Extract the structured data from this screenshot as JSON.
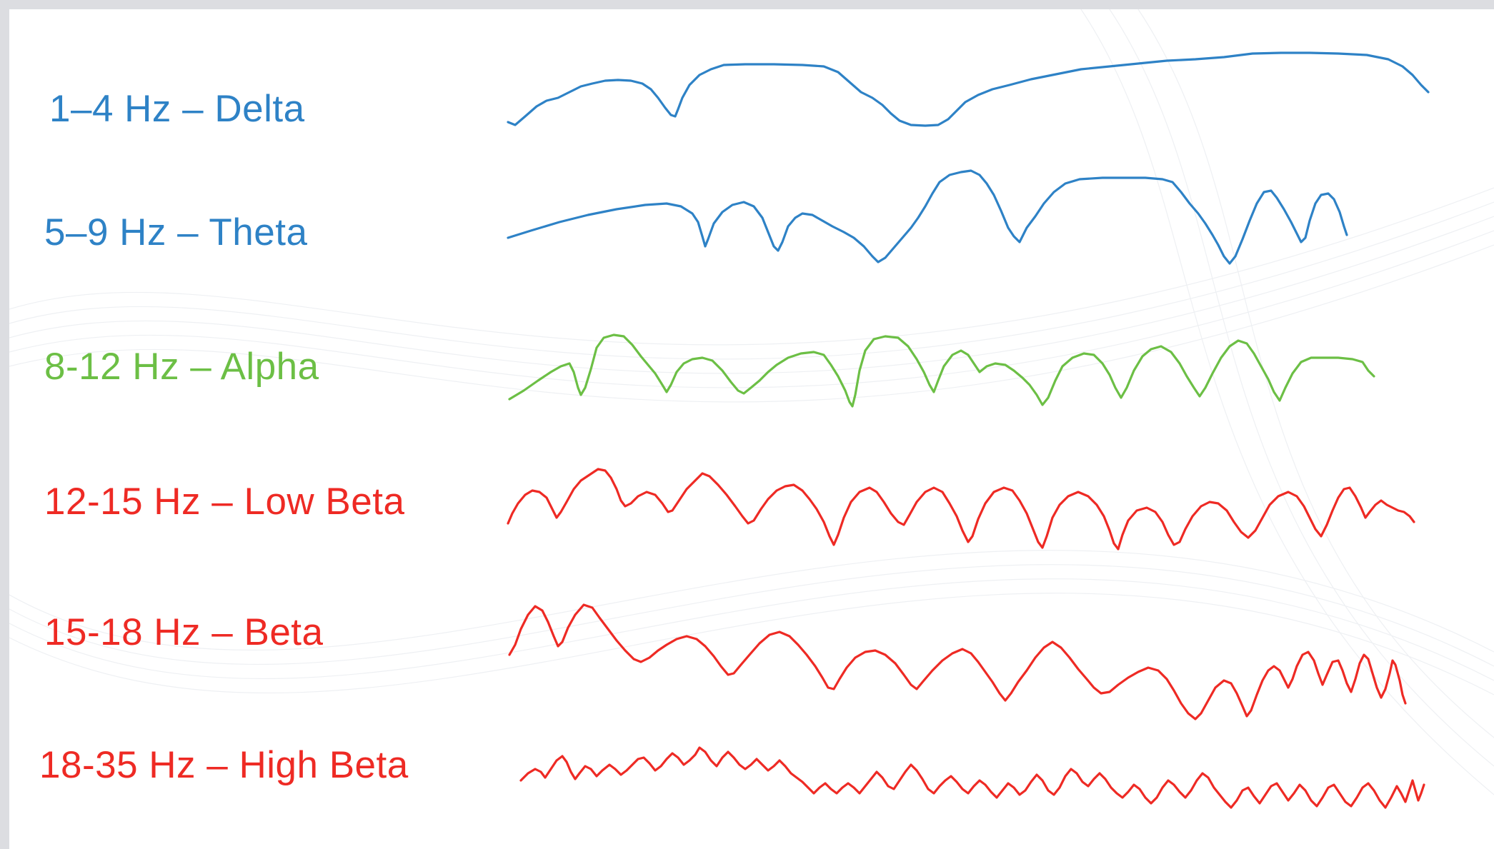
{
  "bands": [
    {
      "label": "1–4 Hz – Delta",
      "color": "#2e82c6"
    },
    {
      "label": "5–9 Hz – Theta",
      "color": "#2e82c6"
    },
    {
      "label": "8-12 Hz – Alpha",
      "color": "#6cbf45"
    },
    {
      "label": "12-15 Hz – Low Beta",
      "color": "#ee2a24"
    },
    {
      "label": "15-18 Hz – Beta",
      "color": "#ee2a24"
    },
    {
      "label": "18-35 Hz – High Beta",
      "color": "#ee2a24"
    }
  ]
}
